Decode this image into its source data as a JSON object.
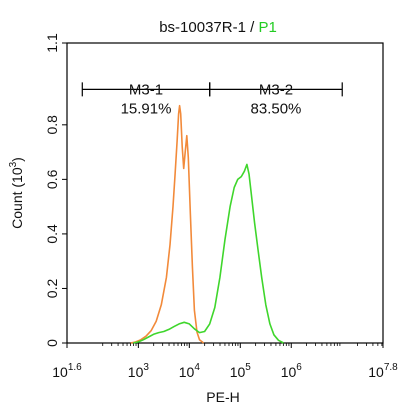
{
  "chart_data": {
    "type": "line",
    "title": {
      "main": "bs-10037R-1",
      "separator": " / ",
      "gate": "P1"
    },
    "xlabel": "PE-H",
    "ylabel": {
      "text": "Count (10",
      "exponent": "3",
      "close": ")"
    },
    "x_scale": "log10",
    "xlim_exp": [
      1.6,
      7.8
    ],
    "ylim": [
      0,
      1.1
    ],
    "x_ticks": [
      {
        "exp": 1.6,
        "base": "10",
        "sup": "1.6"
      },
      {
        "exp": 3,
        "base": "10",
        "sup": "3"
      },
      {
        "exp": 4,
        "base": "10",
        "sup": "4"
      },
      {
        "exp": 5,
        "base": "10",
        "sup": "5"
      },
      {
        "exp": 6,
        "base": "10",
        "sup": "6"
      },
      {
        "exp": 7.8,
        "base": "10",
        "sup": "7.8"
      }
    ],
    "y_ticks": [
      {
        "value": 0,
        "label": "0"
      },
      {
        "value": 0.2,
        "label": "0.2"
      },
      {
        "value": 0.4,
        "label": "0.4"
      },
      {
        "value": 0.6,
        "label": "0.6"
      },
      {
        "value": 0.8,
        "label": "0.8"
      },
      {
        "value": 1.1,
        "label": "1.1"
      }
    ],
    "gates": [
      {
        "name": "M3-1",
        "percent": "15.91%",
        "from_exp": 1.9,
        "to_exp": 4.4
      },
      {
        "name": "M3-2",
        "percent": "83.50%",
        "from_exp": 4.4,
        "to_exp": 7.0
      }
    ],
    "gate_line_y": 0.93,
    "series": [
      {
        "color": "#f28a3a",
        "points": [
          [
            2.85,
            0
          ],
          [
            2.95,
            0.004
          ],
          [
            3.05,
            0.012
          ],
          [
            3.15,
            0.025
          ],
          [
            3.25,
            0.045
          ],
          [
            3.35,
            0.08
          ],
          [
            3.45,
            0.14
          ],
          [
            3.55,
            0.24
          ],
          [
            3.62,
            0.36
          ],
          [
            3.68,
            0.5
          ],
          [
            3.72,
            0.62
          ],
          [
            3.76,
            0.74
          ],
          [
            3.79,
            0.84
          ],
          [
            3.81,
            0.87
          ],
          [
            3.83,
            0.84
          ],
          [
            3.86,
            0.72
          ],
          [
            3.89,
            0.64
          ],
          [
            3.92,
            0.7
          ],
          [
            3.95,
            0.76
          ],
          [
            3.98,
            0.68
          ],
          [
            4.02,
            0.48
          ],
          [
            4.06,
            0.28
          ],
          [
            4.1,
            0.12
          ],
          [
            4.15,
            0.04
          ],
          [
            4.2,
            0.012
          ],
          [
            4.28,
            0
          ]
        ]
      },
      {
        "color": "#3fd62c",
        "points": [
          [
            2.9,
            0
          ],
          [
            3.0,
            0.004
          ],
          [
            3.1,
            0.012
          ],
          [
            3.2,
            0.022
          ],
          [
            3.3,
            0.032
          ],
          [
            3.4,
            0.038
          ],
          [
            3.5,
            0.042
          ],
          [
            3.6,
            0.05
          ],
          [
            3.7,
            0.06
          ],
          [
            3.8,
            0.07
          ],
          [
            3.9,
            0.076
          ],
          [
            4.0,
            0.07
          ],
          [
            4.1,
            0.052
          ],
          [
            4.2,
            0.038
          ],
          [
            4.3,
            0.042
          ],
          [
            4.4,
            0.07
          ],
          [
            4.5,
            0.13
          ],
          [
            4.6,
            0.24
          ],
          [
            4.7,
            0.38
          ],
          [
            4.8,
            0.5
          ],
          [
            4.88,
            0.57
          ],
          [
            4.95,
            0.6
          ],
          [
            5.02,
            0.61
          ],
          [
            5.08,
            0.63
          ],
          [
            5.13,
            0.655
          ],
          [
            5.17,
            0.62
          ],
          [
            5.22,
            0.54
          ],
          [
            5.28,
            0.44
          ],
          [
            5.35,
            0.34
          ],
          [
            5.42,
            0.24
          ],
          [
            5.5,
            0.14
          ],
          [
            5.58,
            0.07
          ],
          [
            5.66,
            0.03
          ],
          [
            5.75,
            0.01
          ],
          [
            5.85,
            0
          ]
        ]
      }
    ]
  }
}
